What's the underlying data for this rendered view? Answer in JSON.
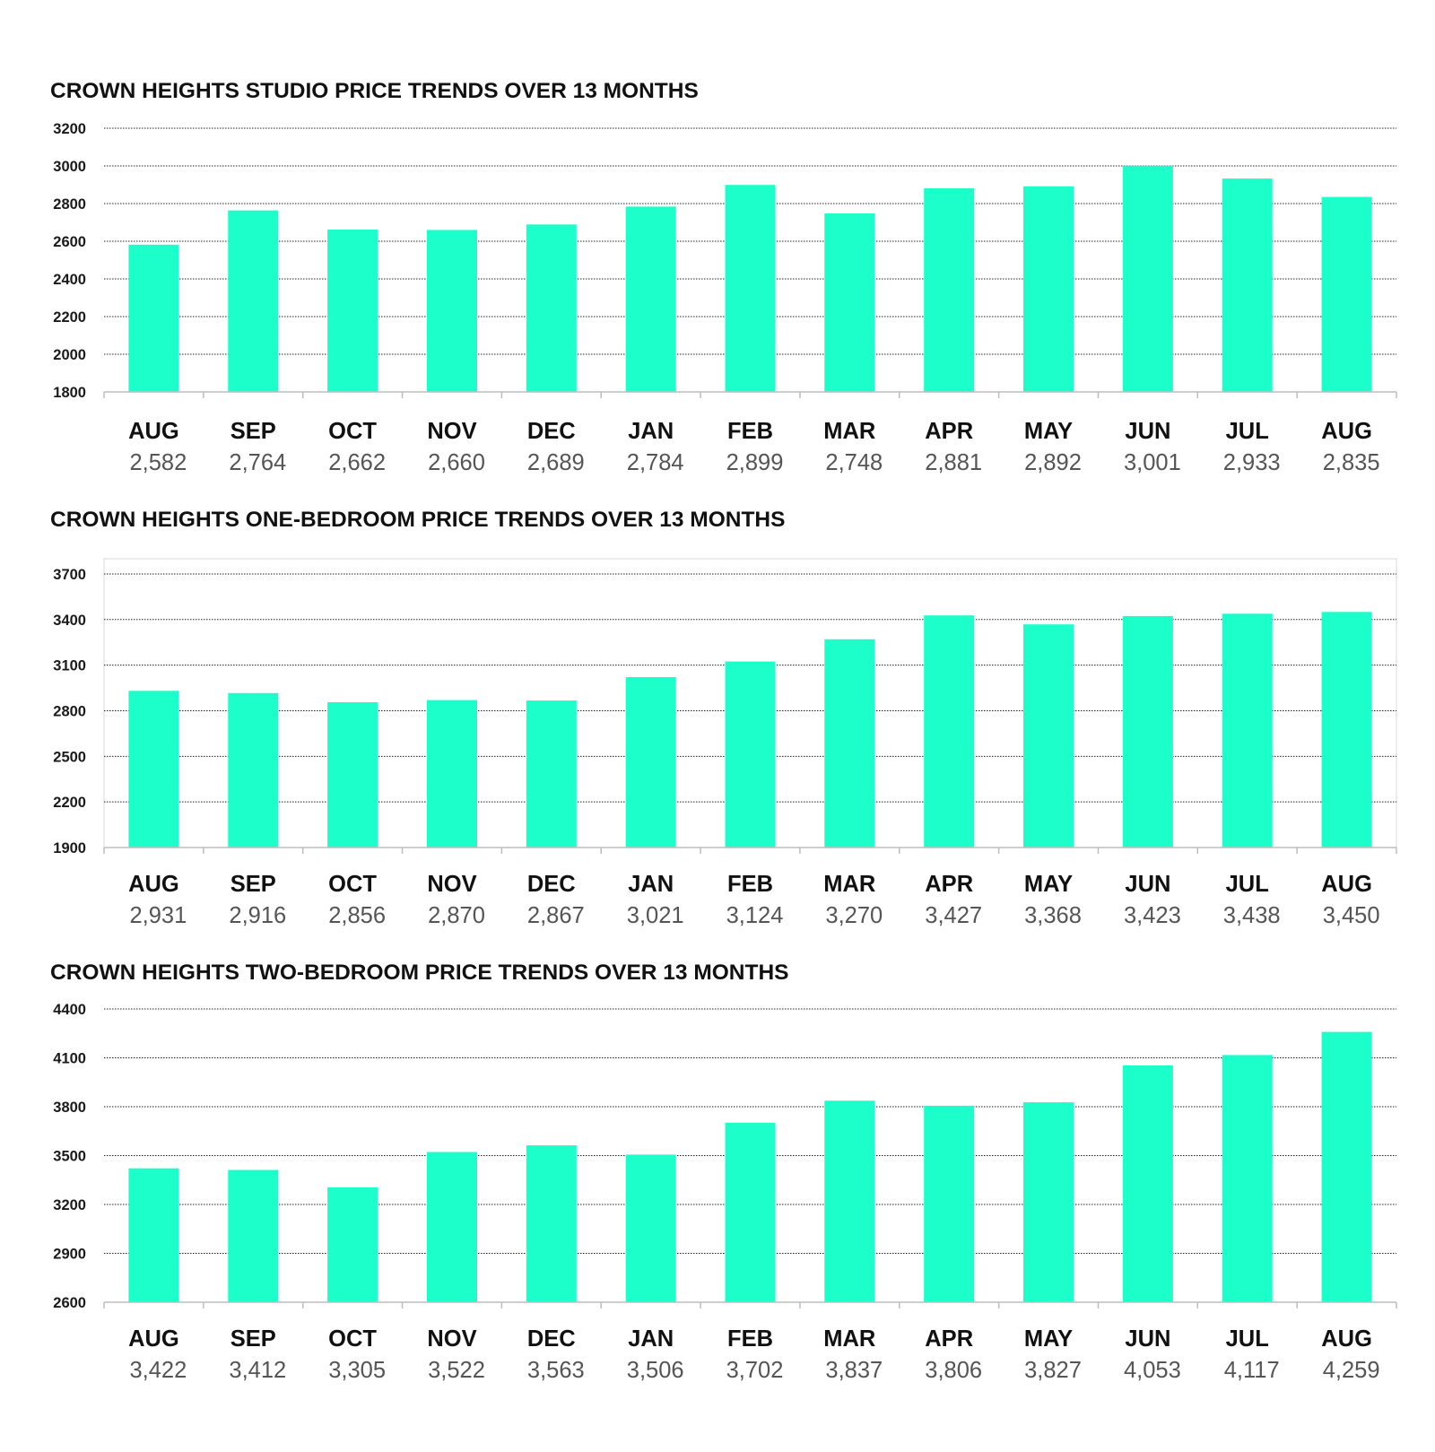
{
  "bar_color": "#1cffcb",
  "chart_data": [
    {
      "type": "bar",
      "title": "CROWN HEIGHTS STUDIO PRICE TRENDS OVER 13 MONTHS",
      "categories": [
        "AUG",
        "SEP",
        "OCT",
        "NOV",
        "DEC",
        "JAN",
        "FEB",
        "MAR",
        "APR",
        "MAY",
        "JUN",
        "JUL",
        "AUG"
      ],
      "values": [
        2582,
        2764,
        2662,
        2660,
        2689,
        2784,
        2899,
        2748,
        2881,
        2892,
        3001,
        2933,
        2835
      ],
      "value_labels": [
        "2,582",
        "2,764",
        "2,662",
        "2,660",
        "2,689",
        "2,784",
        "2,899",
        "2,748",
        "2,881",
        "2,892",
        "3,001",
        "2,933",
        "2,835"
      ],
      "yticks": [
        1800,
        2000,
        2200,
        2400,
        2600,
        2800,
        3000,
        3200
      ],
      "ylim": [
        1800,
        3200
      ],
      "grid": true,
      "xlabel": "",
      "ylabel": ""
    },
    {
      "type": "bar",
      "title": "CROWN HEIGHTS ONE-BEDROOM PRICE TRENDS OVER 13 MONTHS",
      "categories": [
        "AUG",
        "SEP",
        "OCT",
        "NOV",
        "DEC",
        "JAN",
        "FEB",
        "MAR",
        "APR",
        "MAY",
        "JUN",
        "JUL",
        "AUG"
      ],
      "values": [
        2931,
        2916,
        2856,
        2870,
        2867,
        3021,
        3124,
        3270,
        3427,
        3368,
        3423,
        3438,
        3450
      ],
      "value_labels": [
        "2,931",
        "2,916",
        "2,856",
        "2,870",
        "2,867",
        "3,021",
        "3,124",
        "3,270",
        "3,427",
        "3,368",
        "3,423",
        "3,438",
        "3,450"
      ],
      "yticks": [
        1900,
        2200,
        2500,
        2800,
        3100,
        3400,
        3700
      ],
      "ylim": [
        1900,
        3800
      ],
      "grid": true,
      "xlabel": "",
      "ylabel": ""
    },
    {
      "type": "bar",
      "title": "CROWN HEIGHTS TWO-BEDROOM PRICE TRENDS OVER 13 MONTHS",
      "categories": [
        "AUG",
        "SEP",
        "OCT",
        "NOV",
        "DEC",
        "JAN",
        "FEB",
        "MAR",
        "APR",
        "MAY",
        "JUN",
        "JUL",
        "AUG"
      ],
      "values": [
        3422,
        3412,
        3305,
        3522,
        3563,
        3506,
        3702,
        3837,
        3806,
        3827,
        4053,
        4117,
        4259
      ],
      "value_labels": [
        "3,422",
        "3,412",
        "3,305",
        "3,522",
        "3,563",
        "3,506",
        "3,702",
        "3,837",
        "3,806",
        "3,827",
        "4,053",
        "4,117",
        "4,259"
      ],
      "yticks": [
        2600,
        2900,
        3200,
        3500,
        3800,
        4100,
        4400
      ],
      "ylim": [
        2600,
        4400
      ],
      "grid": true,
      "xlabel": "",
      "ylabel": ""
    }
  ]
}
